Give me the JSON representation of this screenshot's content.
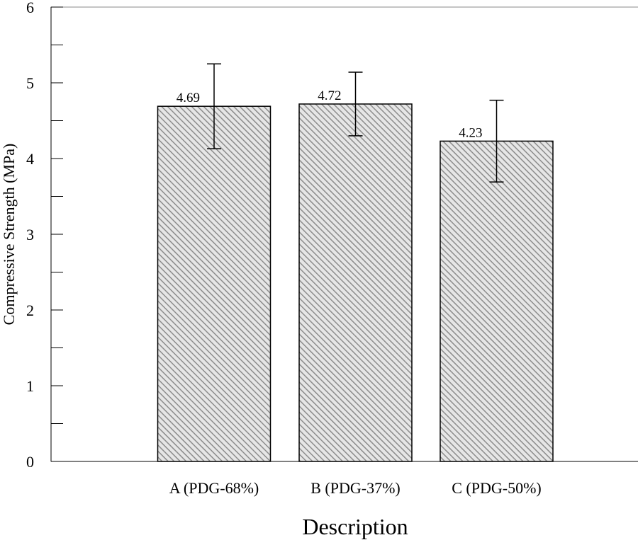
{
  "chart_data": {
    "type": "bar",
    "title": "",
    "xlabel": "Description",
    "ylabel": "Compressive Strength (MPa)",
    "ylim": [
      0,
      6
    ],
    "yticks": [
      0,
      1,
      2,
      3,
      4,
      5,
      6
    ],
    "minor_ticks": true,
    "grid": false,
    "legend": "none",
    "categories": [
      "A (PDG-68%)",
      "B (PDG-37%)",
      "C (PDG-50%)"
    ],
    "values": [
      4.69,
      4.72,
      4.23
    ],
    "data_labels": [
      "4.69",
      "4.72",
      "4.23"
    ],
    "error_bars": [
      {
        "lower": 4.13,
        "upper": 5.25
      },
      {
        "lower": 4.3,
        "upper": 5.14
      },
      {
        "lower": 3.69,
        "upper": 4.77
      }
    ],
    "bar_fill": "hatched-gray",
    "colors": {
      "bar_hatch": "#8c8c8c",
      "bar_background": "#e6e6e6",
      "axis": "#000000",
      "frame": "#888888"
    }
  }
}
